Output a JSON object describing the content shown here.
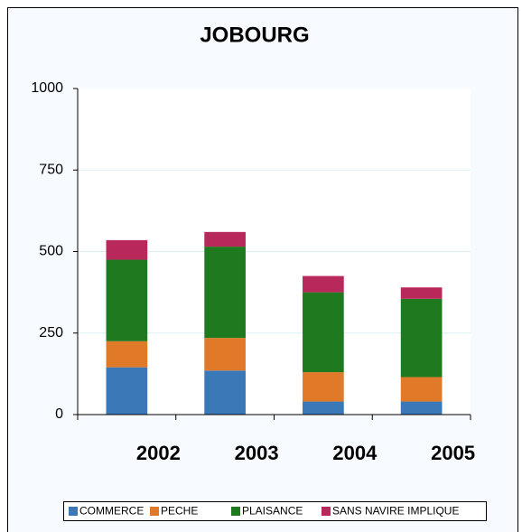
{
  "chart_data": {
    "type": "stacked_bar",
    "title": "JOBOURG",
    "categories": [
      "2002",
      "2003",
      "2004",
      "2005"
    ],
    "series": [
      {
        "name": "COMMERCE",
        "color": "#3a78b8",
        "values": [
          145,
          135,
          40,
          40
        ]
      },
      {
        "name": "PECHE",
        "color": "#e07a28",
        "values": [
          80,
          100,
          90,
          75
        ]
      },
      {
        "name": "PLAISANCE",
        "color": "#1f7a1f",
        "values": [
          250,
          280,
          245,
          240
        ]
      },
      {
        "name": "SANS NAVIRE IMPLIQUE",
        "color": "#b8285a",
        "values": [
          60,
          45,
          50,
          35
        ]
      }
    ],
    "ylim": [
      0,
      1000
    ],
    "yticks": [
      0,
      250,
      500,
      750,
      1000
    ],
    "grid": true,
    "legend": "bottom"
  }
}
